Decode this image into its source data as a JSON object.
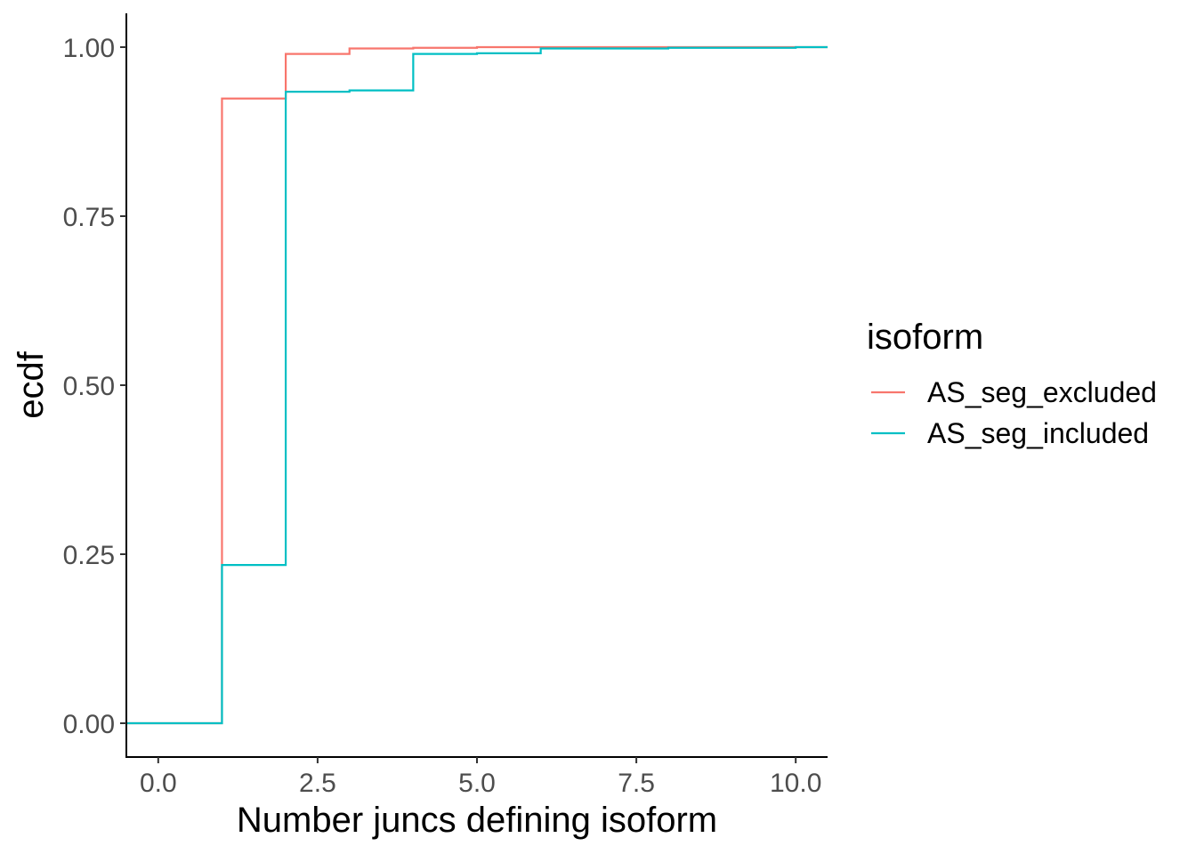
{
  "chart_data": {
    "type": "line",
    "step": true,
    "xlabel": "Number juncs defining isoform",
    "ylabel": "ecdf",
    "xlim": [
      -0.5,
      10.5
    ],
    "ylim": [
      -0.05,
      1.05
    ],
    "x_ticks": [
      0.0,
      2.5,
      5.0,
      7.5,
      10.0
    ],
    "x_tick_labels": [
      "0.0",
      "2.5",
      "5.0",
      "7.5",
      "10.0"
    ],
    "y_ticks": [
      0.0,
      0.25,
      0.5,
      0.75,
      1.0
    ],
    "y_tick_labels": [
      "0.00",
      "0.25",
      "0.50",
      "0.75",
      "1.00"
    ],
    "grid": false,
    "legend": {
      "title": "isoform",
      "position": "right"
    },
    "series": [
      {
        "name": "AS_seg_excluded",
        "color": "#F8766D",
        "x": [
          -0.5,
          1,
          2,
          3,
          4,
          5,
          6,
          8,
          10,
          10.5
        ],
        "y": [
          0.0,
          0.924,
          0.99,
          0.998,
          0.999,
          1.0,
          1.0,
          1.0,
          1.0,
          1.0
        ]
      },
      {
        "name": "AS_seg_included",
        "color": "#00BFC4",
        "x": [
          -0.5,
          1,
          2,
          3,
          4,
          5,
          6,
          8,
          10,
          10.5
        ],
        "y": [
          0.0,
          0.234,
          0.934,
          0.936,
          0.99,
          0.991,
          0.998,
          0.999,
          1.0,
          1.0
        ]
      }
    ]
  }
}
